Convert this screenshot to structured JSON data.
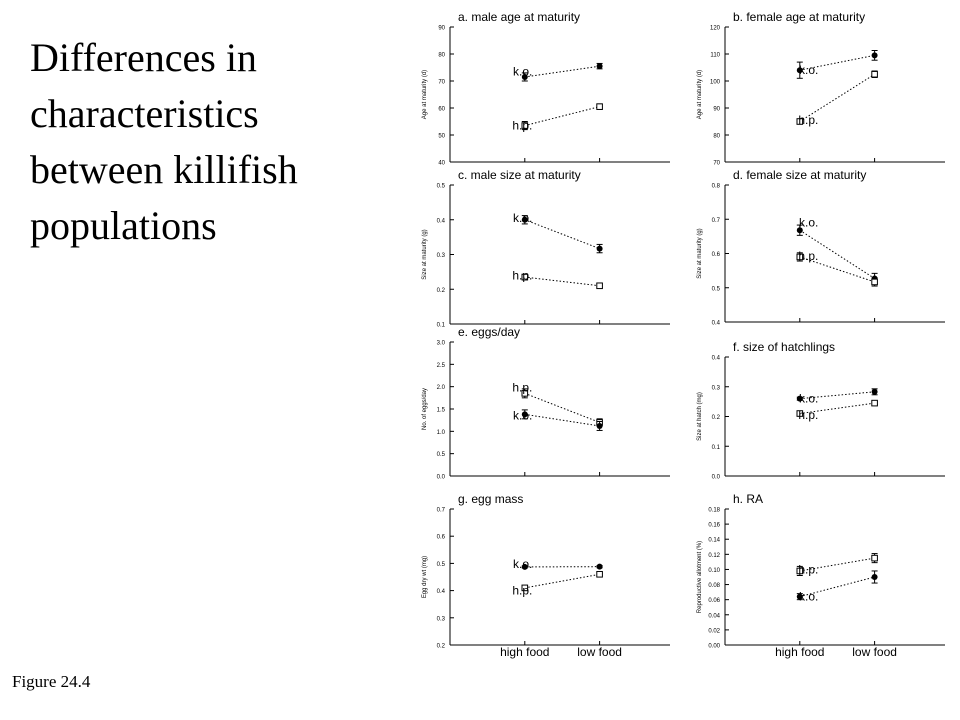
{
  "slide": {
    "title_lines": [
      "Differences in",
      "characteristics",
      "between killifish",
      "populations"
    ],
    "caption": "Figure 24.4"
  },
  "colors": {
    "ink": "#000000",
    "background": "#ffffff"
  },
  "chart_data": [
    {
      "type": "line",
      "title": "a. male age at maturity",
      "ylabel": "Age at maturity (d)",
      "categories": [
        "high food",
        "low food"
      ],
      "ylim": [
        40,
        90
      ],
      "yticks": [
        "40",
        "50",
        "60",
        "70",
        "80",
        "90"
      ],
      "show_xlabels": false,
      "series": [
        {
          "name": "k.o.",
          "marker": "filled",
          "values": [
            71.5,
            75.5
          ],
          "errors": [
            1.5,
            1.0
          ],
          "label_x": 0.42,
          "label_y": 73.5
        },
        {
          "name": "h.p.",
          "marker": "open",
          "values": [
            53.5,
            60.5
          ],
          "errors": [
            1.5,
            1.0
          ],
          "label_x": 0.42,
          "label_y": 53.5
        }
      ]
    },
    {
      "type": "line",
      "title": "b. female age at maturity",
      "ylabel": "Age at maturity (d)",
      "categories": [
        "high food",
        "low food"
      ],
      "ylim": [
        70,
        120
      ],
      "yticks": [
        "70",
        "80",
        "90",
        "100",
        "110",
        "120"
      ],
      "show_xlabels": false,
      "series": [
        {
          "name": "k.o.",
          "marker": "filled",
          "values": [
            104,
            109.5
          ],
          "errors": [
            3.0,
            1.8
          ],
          "label_x": 0.47,
          "label_y": 104.0
        },
        {
          "name": "h.p.",
          "marker": "open",
          "values": [
            85,
            102.5
          ],
          "errors": [
            0.6,
            1.2
          ],
          "label_x": 0.47,
          "label_y": 85.5
        }
      ]
    },
    {
      "type": "line",
      "title": "c. male size at maturity",
      "ylabel": "Size at maturity (g)",
      "categories": [
        "high food",
        "low food"
      ],
      "ylim": [
        0.1,
        0.5
      ],
      "yticks": [
        "0.1",
        "0.2",
        "0.3",
        "0.4",
        "0.5"
      ],
      "show_xlabels": false,
      "series": [
        {
          "name": "k.o.",
          "marker": "filled",
          "values": [
            0.4,
            0.317
          ],
          "errors": [
            0.012,
            0.012
          ],
          "label_x": 0.42,
          "label_y": 0.405
        },
        {
          "name": "h.p.",
          "marker": "open",
          "values": [
            0.235,
            0.21
          ],
          "errors": [
            0.008,
            0.004
          ],
          "label_x": 0.42,
          "label_y": 0.24
        }
      ]
    },
    {
      "type": "line",
      "title": "d. female size at maturity",
      "ylabel": "Size at maturity (g)",
      "categories": [
        "high food",
        "low food"
      ],
      "ylim": [
        0.4,
        0.8
      ],
      "yticks": [
        "0.4",
        "0.5",
        "0.6",
        "0.7",
        "0.8"
      ],
      "show_xlabels": false,
      "series": [
        {
          "name": "k.o.",
          "marker": "filled",
          "values": [
            0.668,
            0.527
          ],
          "errors": [
            0.015,
            0.015
          ],
          "label_x": 0.47,
          "label_y": 0.69
        },
        {
          "name": "h.p.",
          "marker": "open",
          "values": [
            0.59,
            0.517
          ],
          "errors": [
            0.012,
            0.012
          ],
          "label_x": 0.47,
          "label_y": 0.592
        }
      ]
    },
    {
      "type": "line",
      "title": "e. eggs/day",
      "ylabel": "No. of eggs/day",
      "categories": [
        "high food",
        "low food"
      ],
      "ylim": [
        0,
        3.0
      ],
      "yticks": [
        "0.0",
        "0.5",
        "1.0",
        "1.5",
        "2.0",
        "2.5",
        "3.0"
      ],
      "show_xlabels": false,
      "series": [
        {
          "name": "h.p.",
          "marker": "open",
          "values": [
            1.85,
            1.2
          ],
          "errors": [
            0.1,
            0.08
          ],
          "label_x": 0.42,
          "label_y": 1.98
        },
        {
          "name": "k.o.",
          "marker": "filled",
          "values": [
            1.38,
            1.12
          ],
          "errors": [
            0.1,
            0.1
          ],
          "label_x": 0.42,
          "label_y": 1.35
        }
      ]
    },
    {
      "type": "line",
      "title": "f. size of hatchlings",
      "ylabel": "Size at hatch (mg)",
      "categories": [
        "high food",
        "low food"
      ],
      "ylim": [
        0,
        0.4
      ],
      "yticks": [
        "0.0",
        "0.1",
        "0.2",
        "0.3",
        "0.4"
      ],
      "show_xlabels": false,
      "series": [
        {
          "name": "k.o.",
          "marker": "filled",
          "values": [
            0.26,
            0.283
          ],
          "errors": [
            0.005,
            0.01
          ],
          "label_x": 0.47,
          "label_y": 0.26
        },
        {
          "name": "h.p.",
          "marker": "open",
          "values": [
            0.21,
            0.245
          ],
          "errors": [
            0.004,
            0.005
          ],
          "label_x": 0.47,
          "label_y": 0.205
        }
      ]
    },
    {
      "type": "line",
      "title": "g. egg mass",
      "ylabel": "Egg dry wt (mg)",
      "categories": [
        "high food",
        "low food"
      ],
      "ylim": [
        0.2,
        0.7
      ],
      "yticks": [
        "0.2",
        "0.3",
        "0.4",
        "0.5",
        "0.6",
        "0.7"
      ],
      "show_xlabels": true,
      "series": [
        {
          "name": "k.o.",
          "marker": "filled",
          "values": [
            0.487,
            0.488
          ],
          "errors": [
            0.004,
            0.004
          ],
          "label_x": 0.42,
          "label_y": 0.497
        },
        {
          "name": "h.p.",
          "marker": "open",
          "values": [
            0.41,
            0.46
          ],
          "errors": [
            0.004,
            0.004
          ],
          "label_x": 0.42,
          "label_y": 0.4
        }
      ]
    },
    {
      "type": "line",
      "title": "h. RA",
      "ylabel": "Reproductive allotment (%)",
      "categories": [
        "high food",
        "low food"
      ],
      "ylim": [
        0,
        0.18
      ],
      "yticks": [
        "0.00",
        "0.02",
        "0.04",
        "0.06",
        "0.08",
        "0.10",
        "0.12",
        "0.14",
        "0.16",
        "0.18"
      ],
      "show_xlabels": true,
      "series": [
        {
          "name": "h.p.",
          "marker": "open",
          "values": [
            0.098,
            0.115
          ],
          "errors": [
            0.006,
            0.006
          ],
          "label_x": 0.47,
          "label_y": 0.1
        },
        {
          "name": "k.o.",
          "marker": "filled",
          "values": [
            0.064,
            0.09
          ],
          "errors": [
            0.004,
            0.008
          ],
          "label_x": 0.47,
          "label_y": 0.064
        }
      ]
    }
  ]
}
